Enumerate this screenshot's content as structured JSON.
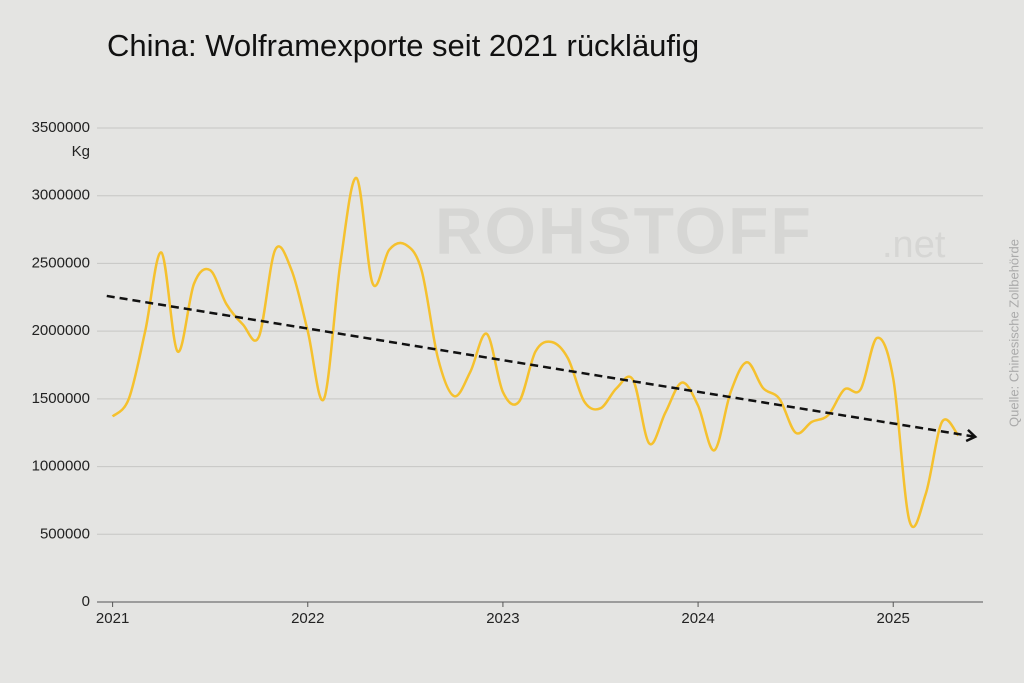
{
  "chart_data": {
    "type": "line",
    "title": "China: Wolframexporte seit 2021 rückläufig",
    "y_unit": "Kg",
    "watermark": "ROHSTOFF",
    "watermark_suffix": ".net",
    "source": "Quelle: Chinesische Zollbehörde",
    "x": [
      2021,
      2021.083,
      2021.167,
      2021.25,
      2021.333,
      2021.417,
      2021.5,
      2021.583,
      2021.667,
      2021.75,
      2021.833,
      2021.917,
      2022,
      2022.083,
      2022.167,
      2022.25,
      2022.333,
      2022.417,
      2022.5,
      2022.583,
      2022.667,
      2022.75,
      2022.833,
      2022.917,
      2023,
      2023.083,
      2023.167,
      2023.25,
      2023.333,
      2023.417,
      2023.5,
      2023.583,
      2023.667,
      2023.75,
      2023.833,
      2023.917,
      2024,
      2024.083,
      2024.167,
      2024.25,
      2024.333,
      2024.417,
      2024.5,
      2024.583,
      2024.667,
      2024.75,
      2024.833,
      2024.917,
      2025,
      2025.083,
      2025.167,
      2025.25,
      2025.333
    ],
    "series": [
      {
        "color": "#f5c12e",
        "values": [
          1370000,
          1500000,
          2000000,
          2580000,
          1850000,
          2350000,
          2450000,
          2200000,
          2050000,
          1960000,
          2600000,
          2450000,
          2000000,
          1500000,
          2500000,
          3130000,
          2350000,
          2600000,
          2640000,
          2450000,
          1800000,
          1520000,
          1700000,
          1980000,
          1550000,
          1480000,
          1850000,
          1920000,
          1800000,
          1480000,
          1430000,
          1580000,
          1640000,
          1170000,
          1400000,
          1620000,
          1450000,
          1120000,
          1550000,
          1770000,
          1580000,
          1500000,
          1250000,
          1330000,
          1380000,
          1570000,
          1570000,
          1950000,
          1650000,
          600000,
          800000,
          1330000,
          1230000
        ]
      }
    ],
    "trend": {
      "color": "#111111",
      "x": [
        2020.97,
        2025.42
      ],
      "values": [
        2260000,
        1220000
      ]
    },
    "xlim": [
      2020.92,
      2025.46
    ],
    "xticks": [
      2021,
      2022,
      2023,
      2024,
      2025
    ],
    "ylim": [
      0,
      3500000
    ],
    "yticks": [
      0,
      500000,
      1000000,
      1500000,
      2000000,
      2500000,
      3000000,
      3500000
    ],
    "grid": true
  }
}
